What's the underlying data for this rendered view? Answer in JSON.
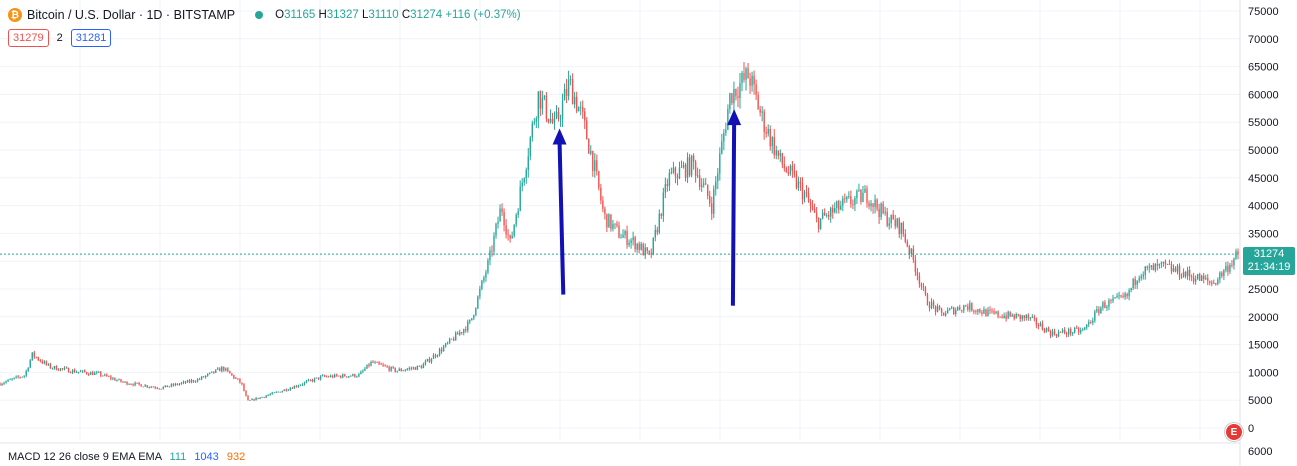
{
  "header": {
    "symbol_label": "Bitcoin / U.S. Dollar · 1D · BITSTAMP",
    "coin_glyph": "₿",
    "ohlc": {
      "open_key": "O",
      "open": "31165",
      "high_key": "H",
      "high": "31327",
      "low_key": "L",
      "low": "31110",
      "close_key": "C",
      "close": "31274",
      "change": "+116 (+0.37%)"
    }
  },
  "orders": {
    "sell": "31279",
    "quantity": "2",
    "buy": "31281"
  },
  "price_badge": {
    "price": "31274",
    "countdown": "21:34:19"
  },
  "indicator": {
    "label": "MACD 12 26 close 9 EMA EMA",
    "v1": "111",
    "v2": "1043",
    "v3": "932"
  },
  "colors": {
    "up": "#26a69a",
    "down": "#ef5350",
    "arrow": "#1212b4",
    "last_line": "#26a69a"
  },
  "chart_data": {
    "type": "candlestick",
    "symbol": "BTCUSD",
    "interval": "1D",
    "ylim": [
      0,
      75000
    ],
    "y_ticks": [
      "75000",
      "70000",
      "65000",
      "60000",
      "55000",
      "50000",
      "45000",
      "40000",
      "35000",
      "30000",
      "25000",
      "20000",
      "15000",
      "10000",
      "5000",
      "0"
    ],
    "macd_tick": "6000",
    "last_price": 31274,
    "series_path": [
      [
        0.0,
        8000
      ],
      [
        0.02,
        9500
      ],
      [
        0.026,
        13200
      ],
      [
        0.04,
        11000
      ],
      [
        0.06,
        10200
      ],
      [
        0.08,
        9700
      ],
      [
        0.1,
        8200
      ],
      [
        0.13,
        7200
      ],
      [
        0.16,
        8700
      ],
      [
        0.18,
        10800
      ],
      [
        0.195,
        8000
      ],
      [
        0.2,
        4800
      ],
      [
        0.225,
        6500
      ],
      [
        0.26,
        9200
      ],
      [
        0.29,
        9500
      ],
      [
        0.3,
        11800
      ],
      [
        0.32,
        10300
      ],
      [
        0.34,
        11000
      ],
      [
        0.36,
        14800
      ],
      [
        0.38,
        19000
      ],
      [
        0.395,
        30000
      ],
      [
        0.405,
        40000
      ],
      [
        0.412,
        33000
      ],
      [
        0.425,
        48000
      ],
      [
        0.435,
        60000
      ],
      [
        0.448,
        54000
      ],
      [
        0.46,
        62000
      ],
      [
        0.47,
        56000
      ],
      [
        0.48,
        47000
      ],
      [
        0.488,
        38000
      ],
      [
        0.5,
        35000
      ],
      [
        0.515,
        33000
      ],
      [
        0.525,
        30500
      ],
      [
        0.54,
        45000
      ],
      [
        0.56,
        47500
      ],
      [
        0.575,
        40000
      ],
      [
        0.59,
        60000
      ],
      [
        0.605,
        63500
      ],
      [
        0.615,
        56000
      ],
      [
        0.63,
        48000
      ],
      [
        0.65,
        42000
      ],
      [
        0.66,
        37000
      ],
      [
        0.68,
        40000
      ],
      [
        0.7,
        42000
      ],
      [
        0.715,
        38000
      ],
      [
        0.728,
        36000
      ],
      [
        0.738,
        30000
      ],
      [
        0.748,
        23000
      ],
      [
        0.76,
        20500
      ],
      [
        0.78,
        22000
      ],
      [
        0.8,
        20500
      ],
      [
        0.83,
        19800
      ],
      [
        0.85,
        17000
      ],
      [
        0.875,
        17500
      ],
      [
        0.89,
        22000
      ],
      [
        0.91,
        23500
      ],
      [
        0.92,
        28000
      ],
      [
        0.94,
        29000
      ],
      [
        0.96,
        27500
      ],
      [
        0.98,
        26000
      ],
      [
        1.0,
        31274
      ]
    ],
    "annotations": [
      {
        "type": "arrow",
        "from": [
          0.455,
          24000
        ],
        "to": [
          0.452,
          53500
        ]
      },
      {
        "type": "arrow",
        "from": [
          0.592,
          22000
        ],
        "to": [
          0.593,
          57000
        ]
      }
    ]
  }
}
